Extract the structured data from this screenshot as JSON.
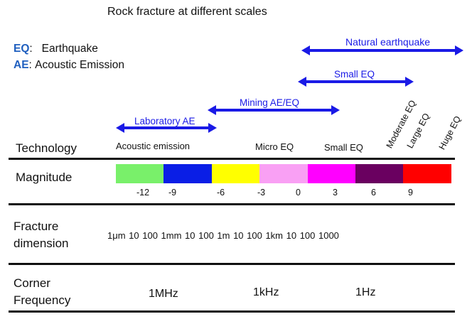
{
  "title": "Rock fracture at different scales",
  "legend": [
    {
      "abbr": "EQ",
      "sep": ":",
      "text": "Earthquake"
    },
    {
      "abbr": "AE",
      "sep": ":",
      "text": "Acoustic Emission"
    }
  ],
  "arrows": [
    {
      "label": "Natural earthquake"
    },
    {
      "label": "Small EQ"
    },
    {
      "label": "Mining AE/EQ"
    },
    {
      "label": "Laboratory AE"
    }
  ],
  "rows": {
    "technology": "Technology",
    "magnitude": "Magnitude",
    "fracture_line1": "Fracture",
    "fracture_line2": "dimension",
    "corner_line1": "Corner",
    "corner_line2": "Frequency"
  },
  "technology_labels": {
    "acoustic": "Acoustic emission",
    "micro": "Micro EQ",
    "small": "Small EQ",
    "moderate": "Moderate EQ",
    "large": "Large EQ",
    "huge": "Huge EQ"
  },
  "magnitude_colors": [
    "#79f06a",
    "#0a1ee6",
    "#ffff00",
    "#f9a0f4",
    "#ff00ff",
    "#6a0060",
    "#ff0000"
  ],
  "magnitude_ticks": [
    "-12",
    "-9",
    "-6",
    "-3",
    "0",
    "3",
    "6",
    "9"
  ],
  "fracture_dimension": "1μm  10  100  1mm  10  100  1m  10 100  1km  10 100 1000",
  "corner_frequency": [
    "1MHz",
    "1kHz",
    "1Hz"
  ],
  "arrow_color": "#1a1ae6"
}
